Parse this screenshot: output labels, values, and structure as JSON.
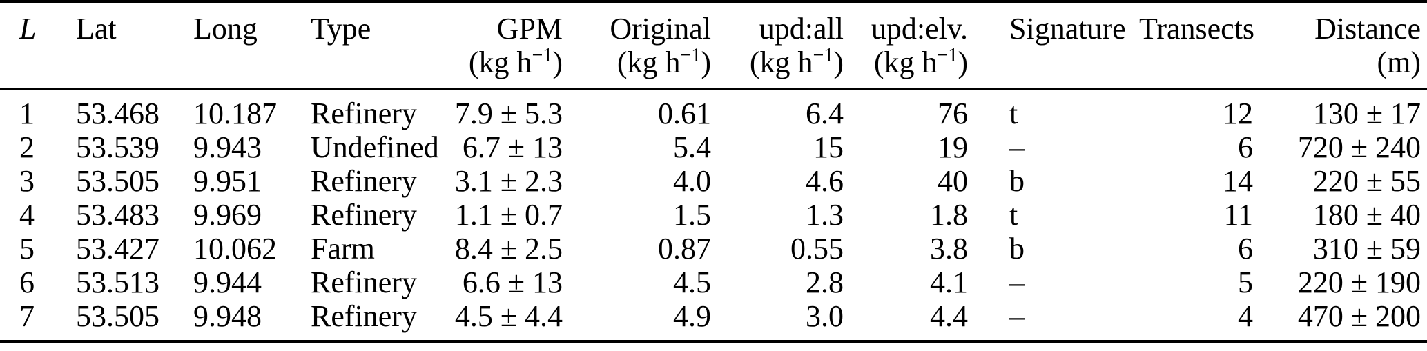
{
  "table": {
    "columns": [
      {
        "label": "L",
        "italic": true,
        "align": "left"
      },
      {
        "label": "Lat",
        "italic": false,
        "align": "left"
      },
      {
        "label": "Long",
        "italic": false,
        "align": "left"
      },
      {
        "label": "Type",
        "italic": false,
        "align": "left"
      },
      {
        "label": "GPM",
        "italic": false,
        "align": "right"
      },
      {
        "label": "Original",
        "italic": false,
        "align": "right"
      },
      {
        "label": "upd:all",
        "italic": false,
        "align": "right"
      },
      {
        "label": "upd:elv.",
        "italic": false,
        "align": "right"
      },
      {
        "label": "Signature",
        "italic": false,
        "align": "left"
      },
      {
        "label": "Transects",
        "italic": false,
        "align": "right"
      },
      {
        "label": "Distance",
        "italic": false,
        "align": "right"
      }
    ],
    "units": {
      "kgh": {
        "open": "(kg h",
        "sup": "−1",
        "close": ")"
      },
      "m": "(m)"
    },
    "rows": [
      [
        "1",
        "53.468",
        "10.187",
        "Refinery",
        "7.9 ± 5.3",
        "0.61",
        "6.4",
        "76",
        "t",
        "12",
        "130 ± 17"
      ],
      [
        "2",
        "53.539",
        "9.943",
        "Undefined",
        "6.7 ± 13",
        "5.4",
        "15",
        "19",
        "–",
        "6",
        "720 ± 240"
      ],
      [
        "3",
        "53.505",
        "9.951",
        "Refinery",
        "3.1 ± 2.3",
        "4.0",
        "4.6",
        "40",
        "b",
        "14",
        "220 ± 55"
      ],
      [
        "4",
        "53.483",
        "9.969",
        "Refinery",
        "1.1 ± 0.7",
        "1.5",
        "1.3",
        "1.8",
        "t",
        "11",
        "180 ± 40"
      ],
      [
        "5",
        "53.427",
        "10.062",
        "Farm",
        "8.4 ± 2.5",
        "0.87",
        "0.55",
        "3.8",
        "b",
        "6",
        "310 ± 59"
      ],
      [
        "6",
        "53.513",
        "9.944",
        "Refinery",
        "6.6 ± 13",
        "4.5",
        "2.8",
        "4.1",
        "–",
        "5",
        "220 ± 190"
      ],
      [
        "7",
        "53.505",
        "9.948",
        "Refinery",
        "4.5 ± 4.4",
        "4.9",
        "3.0",
        "4.4",
        "–",
        "4",
        "470 ± 200"
      ]
    ]
  }
}
